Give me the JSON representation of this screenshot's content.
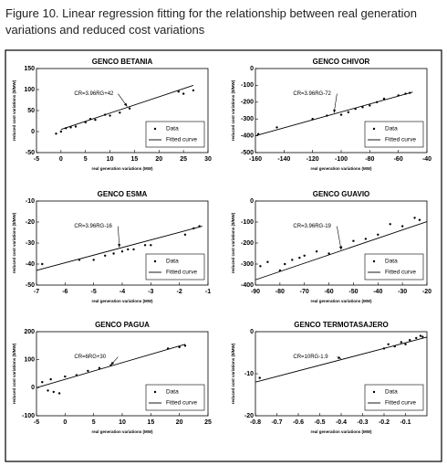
{
  "caption": "Figure 10. Linear regression fitting for the relationship between real generation variations and reduced cost variations",
  "chart_data": [
    {
      "type": "scatter",
      "title": "GENCO BETANIA",
      "xlabel": "real generation variations (MW)",
      "ylabel": "reduced cost variations ($/MW)",
      "annotation": "CR=3.96RG+42",
      "xlim": [
        -5,
        30
      ],
      "xticks": [
        -5,
        0,
        5,
        10,
        15,
        20,
        25,
        30
      ],
      "ylim": [
        -50,
        150
      ],
      "yticks": [
        -50,
        0,
        50,
        100,
        150
      ],
      "series": [
        {
          "name": "Data",
          "mode": "markers",
          "color": "#000000",
          "x": [
            -1,
            0,
            1,
            2,
            3,
            5,
            6,
            7,
            9,
            10,
            12,
            14,
            24,
            25,
            27
          ],
          "values": [
            -5,
            0,
            8,
            10,
            12,
            22,
            30,
            28,
            40,
            38,
            45,
            55,
            95,
            90,
            98
          ]
        },
        {
          "name": "Fitted curve",
          "mode": "line",
          "color": "#000000",
          "x": [
            0,
            27
          ],
          "values": [
            5,
            110
          ]
        }
      ]
    },
    {
      "type": "scatter",
      "title": "GENCO CHIVOR",
      "xlabel": "real generation variations (MW)",
      "ylabel": "reduced cost variations ($/MW)",
      "annotation": "CR=3.96RG-72",
      "xlim": [
        -160,
        -40
      ],
      "xticks": [
        -160,
        -140,
        -120,
        -100,
        -80,
        -60,
        -40
      ],
      "ylim": [
        -500,
        0
      ],
      "yticks": [
        -500,
        -400,
        -300,
        -200,
        -100,
        0
      ],
      "series": [
        {
          "name": "Data",
          "mode": "markers",
          "color": "#000000",
          "x": [
            -158,
            -145,
            -120,
            -110,
            -100,
            -95,
            -90,
            -85,
            -80,
            -75,
            -70,
            -60,
            -55,
            -52
          ],
          "values": [
            -390,
            -350,
            -300,
            -280,
            -275,
            -260,
            -240,
            -230,
            -220,
            -200,
            -180,
            -160,
            -150,
            -145
          ]
        },
        {
          "name": "Fitted curve",
          "mode": "line",
          "color": "#000000",
          "x": [
            -160,
            -50
          ],
          "values": [
            -400,
            -140
          ]
        }
      ]
    },
    {
      "type": "scatter",
      "title": "GENCO ESMA",
      "xlabel": "real generation variations (MW)",
      "ylabel": "reduced cost variations ($/MW)",
      "annotation": "CR=3.96RG-16",
      "xlim": [
        -7,
        -1
      ],
      "xticks": [
        -7,
        -6,
        -5,
        -4,
        -3,
        -2,
        -1
      ],
      "ylim": [
        -50,
        -10
      ],
      "yticks": [
        -50,
        -40,
        -30,
        -20,
        -10
      ],
      "series": [
        {
          "name": "Data",
          "mode": "markers",
          "color": "#000000",
          "x": [
            -6.8,
            -5.5,
            -5,
            -4.6,
            -4.3,
            -4,
            -3.8,
            -3.6,
            -3.2,
            -3,
            -1.8,
            -1.5,
            -1.3
          ],
          "values": [
            -40,
            -38,
            -38,
            -36,
            -35,
            -34,
            -33,
            -33,
            -31,
            -31,
            -26,
            -23,
            -22
          ]
        },
        {
          "name": "Fitted curve",
          "mode": "line",
          "color": "#000000",
          "x": [
            -7,
            -1.2
          ],
          "values": [
            -43,
            -22
          ]
        }
      ]
    },
    {
      "type": "scatter",
      "title": "GENCO GUAVIO",
      "xlabel": "real generation variations (MW)",
      "ylabel": "reduced cost variations ($/MW)",
      "annotation": "CR=3.96RG-19",
      "xlim": [
        -90,
        -20
      ],
      "xticks": [
        -90,
        -80,
        -70,
        -60,
        -50,
        -40,
        -30,
        -20
      ],
      "ylim": [
        -400,
        0
      ],
      "yticks": [
        -400,
        -300,
        -200,
        -100,
        0
      ],
      "series": [
        {
          "name": "Data",
          "mode": "markers",
          "color": "#000000",
          "x": [
            -88,
            -85,
            -80,
            -78,
            -75,
            -72,
            -70,
            -65,
            -60,
            -55,
            -50,
            -45,
            -40,
            -35,
            -30,
            -25,
            -23
          ],
          "values": [
            -310,
            -290,
            -330,
            -300,
            -280,
            -270,
            -260,
            -240,
            -250,
            -220,
            -190,
            -180,
            -160,
            -110,
            -120,
            -80,
            -90
          ]
        },
        {
          "name": "Fitted curve",
          "mode": "line",
          "color": "#000000",
          "x": [
            -90,
            -20
          ],
          "values": [
            -375,
            -98
          ]
        }
      ]
    },
    {
      "type": "scatter",
      "title": "GENCO PAGUA",
      "xlabel": "real generation variations (MW)",
      "ylabel": "reduced cost variations ($/MW)",
      "annotation": "CR=6RG+30",
      "xlim": [
        -5,
        25
      ],
      "xticks": [
        -5,
        0,
        5,
        10,
        15,
        20,
        25
      ],
      "ylim": [
        -100,
        200
      ],
      "yticks": [
        -100,
        0,
        100,
        200
      ],
      "series": [
        {
          "name": "Data",
          "mode": "markers",
          "color": "#000000",
          "x": [
            -4,
            -3,
            -2.5,
            -2,
            -1,
            0,
            2,
            4,
            6,
            8,
            18,
            20,
            21
          ],
          "values": [
            20,
            -10,
            30,
            -15,
            -20,
            40,
            45,
            60,
            70,
            80,
            140,
            145,
            150
          ]
        },
        {
          "name": "Fitted curve",
          "mode": "line",
          "color": "#000000",
          "x": [
            -5,
            21
          ],
          "values": [
            0,
            155
          ]
        }
      ]
    },
    {
      "type": "scatter",
      "title": "GENCO TERMOTASAJERO",
      "xlabel": "real generation variations (MW)",
      "ylabel": "reduced cost variations ($/MW)",
      "annotation": "CR=10RG-1.9",
      "xlim": [
        -0.8,
        0
      ],
      "xticks": [
        -0.8,
        -0.7,
        -0.6,
        -0.5,
        -0.4,
        -0.3,
        -0.2,
        -0.1
      ],
      "ylim": [
        -20,
        0
      ],
      "yticks": [
        -20,
        -10,
        0
      ],
      "series": [
        {
          "name": "Data",
          "mode": "markers",
          "color": "#000000",
          "x": [
            -0.78,
            -0.2,
            -0.18,
            -0.15,
            -0.12,
            -0.1,
            -0.08,
            -0.05,
            -0.03,
            -0.02
          ],
          "values": [
            -11,
            -4,
            -3,
            -3.5,
            -2.5,
            -3,
            -2,
            -1.5,
            -1,
            -1.2
          ]
        },
        {
          "name": "Fitted curve",
          "mode": "line",
          "color": "#000000",
          "x": [
            -0.8,
            0
          ],
          "values": [
            -12,
            -1.3
          ]
        }
      ]
    }
  ]
}
